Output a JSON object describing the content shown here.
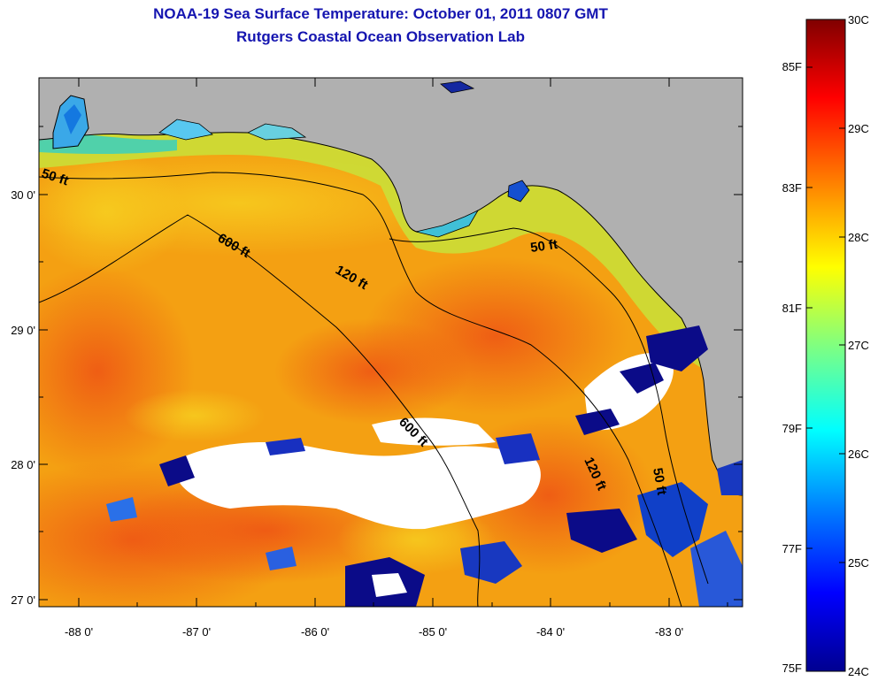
{
  "header": {
    "title": "NOAA-19 Sea Surface Temperature:  October 01, 2011 0807 GMT",
    "subtitle": "Rutgers Coastal Ocean Observation Lab"
  },
  "map": {
    "lat_labels": [
      "30 0'",
      "29 0'",
      "28 0'",
      "27 0'"
    ],
    "lon_labels": [
      "-88 0'",
      "-87 0'",
      "-86 0'",
      "-85 0'",
      "-84 0'",
      "-83 0'"
    ],
    "contours": [
      {
        "label": "50 ft"
      },
      {
        "label": "50 ft"
      },
      {
        "label": "600 ft"
      },
      {
        "label": "120 ft"
      },
      {
        "label": "600 ft"
      },
      {
        "label": "120 ft"
      },
      {
        "label": "50 ft"
      }
    ],
    "colors": {
      "land": "#b0b0b0",
      "cloud": "#ffffff",
      "cloud_edge": "#10108a",
      "warm": "#ee5a12",
      "mid": "#f5a010",
      "cool": "#f5d21a",
      "coastal": "#a8e838"
    }
  },
  "colorbar": {
    "fahrenheit_labels": [
      "85F",
      "83F",
      "81F",
      "79F",
      "77F",
      "75F"
    ],
    "celsius_labels": [
      "30C",
      "29C",
      "28C",
      "27C",
      "26C",
      "25C",
      "24C"
    ],
    "min_c": 24,
    "max_c": 30,
    "colormap": [
      "#000090",
      "#0000ff",
      "#0080ff",
      "#00ffff",
      "#80ff80",
      "#ffff00",
      "#ff8000",
      "#ff0000",
      "#800000"
    ]
  }
}
